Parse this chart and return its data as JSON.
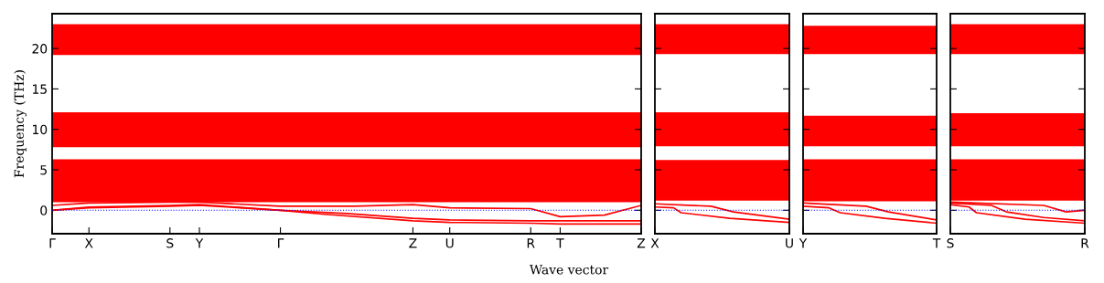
{
  "chart_data": [
    {
      "type": "line",
      "xlabel": "Wave vector",
      "ylabel": "Frequency (THz)",
      "ylim": [
        -2.9,
        24.3
      ],
      "yticks": [
        0,
        5,
        10,
        15,
        20
      ],
      "categories": [
        "Γ",
        null,
        null,
        null,
        null,
        "X",
        null,
        null,
        null,
        null,
        null,
        null,
        null,
        null,
        null,
        null,
        "S",
        null,
        null,
        null,
        "Y",
        null,
        null,
        null,
        null,
        null,
        null,
        null,
        null,
        null,
        null,
        "Γ",
        null,
        null,
        null,
        null,
        null,
        null,
        null,
        null,
        null,
        null,
        null,
        null,
        null,
        null,
        null,
        null,
        null,
        "Z",
        null,
        null,
        null,
        null,
        "U",
        null,
        null,
        null,
        null,
        null,
        null,
        null,
        null,
        null,
        null,
        "R",
        null,
        null,
        null,
        "T",
        null,
        null,
        null,
        null,
        null,
        null,
        null,
        null,
        null,
        null,
        "Z"
      ],
      "bands": [
        {
          "axis": "y",
          "from": 19.2,
          "to": 23.0,
          "color": "#ff0000"
        },
        {
          "axis": "y",
          "from": 7.8,
          "to": 12.1,
          "color": "#ff0000"
        },
        {
          "axis": "y",
          "from": 1.0,
          "to": 6.3,
          "color": "#ff0000"
        }
      ],
      "ref_lines": [
        {
          "axis": "y",
          "value": 0,
          "color": "#0000ff",
          "line_style": "dotted"
        }
      ],
      "series": [
        {
          "color": "#ff0000",
          "values": [
            0,
            null,
            null,
            null,
            null,
            0.3,
            null,
            null,
            null,
            null,
            null,
            null,
            null,
            null,
            null,
            null,
            0.5,
            null,
            null,
            null,
            0.6,
            null,
            null,
            null,
            null,
            null,
            null,
            null,
            null,
            null,
            null,
            0,
            null,
            null,
            null,
            null,
            null,
            -0.5,
            null,
            null,
            null,
            null,
            null,
            null,
            null,
            null,
            null,
            null,
            null,
            -1.3,
            null,
            null,
            null,
            null,
            -1.5,
            null,
            null,
            null,
            null,
            null,
            null,
            null,
            null,
            null,
            null,
            -1.6,
            null,
            null,
            null,
            -1.7,
            null,
            null,
            null,
            null,
            null,
            null,
            null,
            null,
            null,
            null,
            -1.7
          ]
        },
        {
          "color": "#ff0000",
          "values": [
            0,
            null,
            null,
            null,
            null,
            0.4,
            null,
            null,
            null,
            null,
            null,
            null,
            null,
            null,
            null,
            null,
            0.6,
            null,
            null,
            null,
            0.7,
            null,
            null,
            null,
            null,
            null,
            null,
            null,
            null,
            null,
            null,
            0,
            null,
            null,
            null,
            null,
            null,
            null,
            null,
            null,
            -0.4,
            null,
            null,
            null,
            null,
            null,
            null,
            null,
            null,
            -1.0,
            null,
            null,
            null,
            null,
            -1.2,
            null,
            null,
            null,
            null,
            null,
            null,
            null,
            null,
            null,
            null,
            -1.3,
            null,
            null,
            null,
            -1.3,
            null,
            null,
            null,
            null,
            null,
            null,
            null,
            null,
            null,
            null,
            -1.3
          ]
        },
        {
          "color": "#ff0000",
          "values": [
            0.6,
            null,
            null,
            null,
            null,
            0.9,
            null,
            null,
            null,
            null,
            null,
            null,
            null,
            null,
            null,
            null,
            1.0,
            null,
            null,
            null,
            1.0,
            null,
            null,
            null,
            null,
            null,
            null,
            null,
            null,
            null,
            null,
            0.5,
            null,
            null,
            null,
            null,
            null,
            null,
            null,
            null,
            null,
            0.5,
            null,
            null,
            null,
            null,
            null,
            null,
            null,
            0.7,
            null,
            null,
            null,
            null,
            0.3,
            null,
            null,
            null,
            null,
            null,
            null,
            null,
            null,
            null,
            null,
            0.2,
            null,
            null,
            null,
            -0.8,
            null,
            null,
            null,
            null,
            null,
            -0.6,
            null,
            null,
            null,
            null,
            0.6
          ]
        }
      ]
    },
    {
      "type": "line",
      "tick_labels": "x",
      "ylim": [
        -2.9,
        24.3
      ],
      "yticks": [
        0,
        5,
        10,
        15,
        20
      ],
      "categories": [
        "X",
        null,
        null,
        null,
        null,
        null,
        null,
        null,
        null,
        null,
        null,
        null,
        null,
        null,
        null,
        null,
        null,
        null,
        null,
        null,
        null,
        null,
        null,
        null,
        null,
        null,
        null,
        null,
        null,
        null,
        null,
        null,
        null,
        null,
        null,
        null,
        "U"
      ],
      "bands": [
        {
          "axis": "y",
          "from": 19.3,
          "to": 23.0,
          "color": "#ff0000"
        },
        {
          "axis": "y",
          "from": 7.9,
          "to": 12.1,
          "color": "#ff0000"
        },
        {
          "axis": "y",
          "from": 1.2,
          "to": 6.2,
          "color": "#ff0000"
        }
      ],
      "ref_lines": [
        {
          "axis": "y",
          "value": 0,
          "color": "#0000ff",
          "line_style": "dotted"
        }
      ],
      "series": [
        {
          "color": "#ff0000",
          "values": [
            0.4,
            null,
            null,
            null,
            null,
            0.3,
            null,
            -0.3,
            null,
            null,
            null,
            null,
            null,
            null,
            null,
            null,
            null,
            null,
            null,
            null,
            -1.0,
            null,
            null,
            null,
            null,
            null,
            null,
            null,
            null,
            null,
            null,
            null,
            null,
            null,
            null,
            null,
            -1.5
          ]
        },
        {
          "color": "#ff0000",
          "values": [
            0.8,
            null,
            null,
            null,
            null,
            null,
            null,
            null,
            null,
            null,
            null,
            null,
            null,
            null,
            null,
            0.5,
            null,
            null,
            null,
            null,
            null,
            -0.2,
            null,
            null,
            null,
            null,
            null,
            null,
            null,
            null,
            null,
            null,
            null,
            null,
            null,
            null,
            -1.1
          ]
        }
      ]
    },
    {
      "type": "line",
      "tick_labels": "x",
      "ylim": [
        -2.9,
        24.3
      ],
      "yticks": [
        0,
        5,
        10,
        15,
        20
      ],
      "categories": [
        "Y",
        null,
        null,
        null,
        null,
        null,
        null,
        null,
        null,
        null,
        null,
        null,
        null,
        null,
        null,
        null,
        null,
        null,
        null,
        null,
        null,
        null,
        null,
        null,
        null,
        null,
        null,
        null,
        null,
        null,
        null,
        null,
        null,
        null,
        null,
        null,
        "T"
      ],
      "bands": [
        {
          "axis": "y",
          "from": 19.3,
          "to": 22.8,
          "color": "#ff0000"
        },
        {
          "axis": "y",
          "from": 7.9,
          "to": 11.7,
          "color": "#ff0000"
        },
        {
          "axis": "y",
          "from": 1.1,
          "to": 6.3,
          "color": "#ff0000"
        }
      ],
      "ref_lines": [
        {
          "axis": "y",
          "value": 0,
          "color": "#0000ff",
          "line_style": "dotted"
        }
      ],
      "series": [
        {
          "color": "#ff0000",
          "values": [
            0.5,
            null,
            null,
            null,
            null,
            null,
            null,
            0.3,
            null,
            null,
            -0.3,
            null,
            null,
            null,
            null,
            null,
            null,
            null,
            null,
            null,
            null,
            null,
            -1.0,
            null,
            null,
            null,
            null,
            null,
            null,
            null,
            null,
            null,
            null,
            null,
            null,
            null,
            -1.6
          ]
        },
        {
          "color": "#ff0000",
          "values": [
            0.9,
            null,
            null,
            null,
            null,
            null,
            null,
            null,
            null,
            null,
            null,
            null,
            null,
            null,
            null,
            null,
            null,
            0.5,
            null,
            null,
            null,
            null,
            null,
            -0.2,
            null,
            null,
            null,
            null,
            null,
            null,
            null,
            null,
            null,
            null,
            null,
            null,
            -1.2
          ]
        }
      ]
    },
    {
      "type": "line",
      "tick_labels": "x",
      "ylim": [
        -2.9,
        24.3
      ],
      "yticks": [
        0,
        5,
        10,
        15,
        20
      ],
      "categories": [
        "S",
        null,
        null,
        null,
        null,
        null,
        null,
        null,
        null,
        null,
        null,
        null,
        null,
        null,
        null,
        null,
        null,
        null,
        null,
        null,
        null,
        null,
        null,
        null,
        null,
        null,
        null,
        null,
        null,
        null,
        null,
        null,
        null,
        null,
        null,
        null,
        "R"
      ],
      "bands": [
        {
          "axis": "y",
          "from": 19.3,
          "to": 23.0,
          "color": "#ff0000"
        },
        {
          "axis": "y",
          "from": 7.9,
          "to": 12.0,
          "color": "#ff0000"
        },
        {
          "axis": "y",
          "from": 1.2,
          "to": 6.3,
          "color": "#ff0000"
        }
      ],
      "ref_lines": [
        {
          "axis": "y",
          "value": 0,
          "color": "#0000ff",
          "line_style": "dotted"
        }
      ],
      "series": [
        {
          "color": "#ff0000",
          "values": [
            0.7,
            null,
            null,
            null,
            null,
            0.4,
            null,
            -0.3,
            null,
            null,
            null,
            null,
            null,
            null,
            null,
            null,
            null,
            null,
            null,
            null,
            -1.1,
            null,
            null,
            null,
            null,
            null,
            null,
            null,
            null,
            null,
            null,
            null,
            null,
            null,
            null,
            null,
            -1.6
          ]
        },
        {
          "color": "#ff0000",
          "values": [
            0.9,
            null,
            null,
            null,
            null,
            null,
            null,
            null,
            null,
            null,
            null,
            0.6,
            null,
            null,
            null,
            -0.2,
            null,
            null,
            null,
            null,
            null,
            null,
            null,
            null,
            null,
            -0.9,
            null,
            null,
            null,
            null,
            null,
            null,
            null,
            null,
            null,
            null,
            -1.3
          ]
        },
        {
          "color": "#ff0000",
          "values": [
            1.0,
            null,
            null,
            null,
            null,
            null,
            null,
            null,
            null,
            null,
            null,
            null,
            null,
            null,
            null,
            null,
            null,
            null,
            null,
            null,
            null,
            null,
            null,
            null,
            null,
            0.6,
            null,
            null,
            null,
            null,
            null,
            -0.2,
            null,
            null,
            null,
            null,
            0
          ]
        }
      ]
    }
  ]
}
